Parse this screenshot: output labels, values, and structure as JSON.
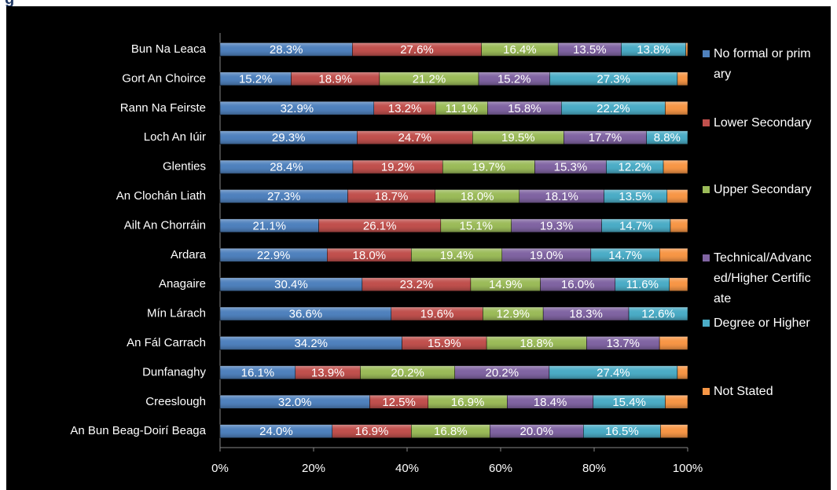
{
  "chart_data": {
    "type": "stacked_bar_100",
    "orientation": "horizontal",
    "title": "g",
    "categories": [
      "Bun Na Leaca",
      "Gort An Choirce",
      "Rann Na Feirste",
      "Loch An Iúir",
      "Glenties",
      "An Clochán Liath",
      "Ailt An Chorráin",
      "Ardara",
      "Anagaire",
      "Mín Lárach",
      "An Fál Carrach",
      "Dunfanaghy",
      "Creeslough",
      "An Bun Beag-Doirí Beaga"
    ],
    "series": [
      {
        "name": "No formal or primary",
        "color": "#4f81bd",
        "values": [
          28.3,
          15.2,
          32.9,
          29.3,
          28.4,
          27.3,
          21.1,
          22.9,
          30.4,
          36.6,
          34.2,
          16.1,
          32.0,
          24.0
        ],
        "value_labels": [
          "28.3%",
          "15.2%",
          "32.9%",
          "29.3%",
          "28.4%",
          "27.3%",
          "21.1%",
          "22.9%",
          "30.4%",
          "36.6%",
          "34.2%",
          "16.1%",
          "32.0%",
          "24.0%"
        ]
      },
      {
        "name": "Lower Secondary",
        "color": "#c0504d",
        "values": [
          27.6,
          18.9,
          13.2,
          24.7,
          19.2,
          18.7,
          26.1,
          18.0,
          23.2,
          19.6,
          15.9,
          13.9,
          12.5,
          16.9
        ],
        "value_labels": [
          "27.6%",
          "18.9%",
          "13.2%",
          "24.7%",
          "19.2%",
          "18.7%",
          "26.1%",
          "18.0%",
          "23.2%",
          "19.6%",
          "15.9%",
          "13.9%",
          "12.5%",
          "16.9%"
        ]
      },
      {
        "name": "Upper Secondary",
        "color": "#9bbb59",
        "values": [
          16.4,
          21.2,
          11.1,
          19.5,
          19.7,
          18.0,
          15.1,
          19.4,
          14.9,
          12.9,
          18.8,
          20.2,
          16.9,
          16.8
        ],
        "value_labels": [
          "16.4%",
          "21.2%",
          "11.1%",
          "19.5%",
          "19.7%",
          "18.0%",
          "15.1%",
          "19.4%",
          "14.9%",
          "12.9%",
          "18.8%",
          "20.2%",
          "16.9%",
          "16.8%"
        ]
      },
      {
        "name": "Technical/Advanced/Higher Certificate",
        "color": "#8064a2",
        "values": [
          13.5,
          15.2,
          15.8,
          17.7,
          15.3,
          18.1,
          19.3,
          19.0,
          16.0,
          18.3,
          13.7,
          20.2,
          18.4,
          20.0
        ],
        "value_labels": [
          "13.5%",
          "15.2%",
          "15.8%",
          "17.7%",
          "15.3%",
          "18.1%",
          "19.3%",
          "19.0%",
          "16.0%",
          "18.3%",
          "13.7%",
          "20.2%",
          "18.4%",
          "20.0%"
        ]
      },
      {
        "name": "Degree or Higher",
        "color": "#4bacc6",
        "values": [
          13.8,
          27.3,
          22.2,
          8.8,
          12.2,
          13.5,
          14.7,
          14.7,
          11.6,
          12.6,
          null,
          27.4,
          15.4,
          16.5
        ],
        "value_labels": [
          "13.8%",
          "27.3%",
          "22.2%",
          "8.8%",
          "12.2%",
          "13.5%",
          "14.7%",
          "14.7%",
          "11.6%",
          "12.6%",
          null,
          "27.4%",
          "15.4%",
          "16.5%"
        ]
      },
      {
        "name": "Not Stated",
        "color": "#f79646",
        "values": [
          0.4,
          2.2,
          4.8,
          0,
          5.2,
          4.4,
          3.7,
          6.0,
          3.9,
          0,
          5.3,
          2.2,
          4.8,
          5.8
        ]
      }
    ],
    "xlim": [
      0,
      100
    ],
    "xticks": [
      {
        "value": 0,
        "label": "0%"
      },
      {
        "value": 20,
        "label": "20%"
      },
      {
        "value": 40,
        "label": "40%"
      },
      {
        "value": 60,
        "label": "60%"
      },
      {
        "value": 80,
        "label": "80%"
      },
      {
        "value": 100,
        "label": "100%"
      }
    ],
    "grid": false,
    "legend": "right"
  }
}
